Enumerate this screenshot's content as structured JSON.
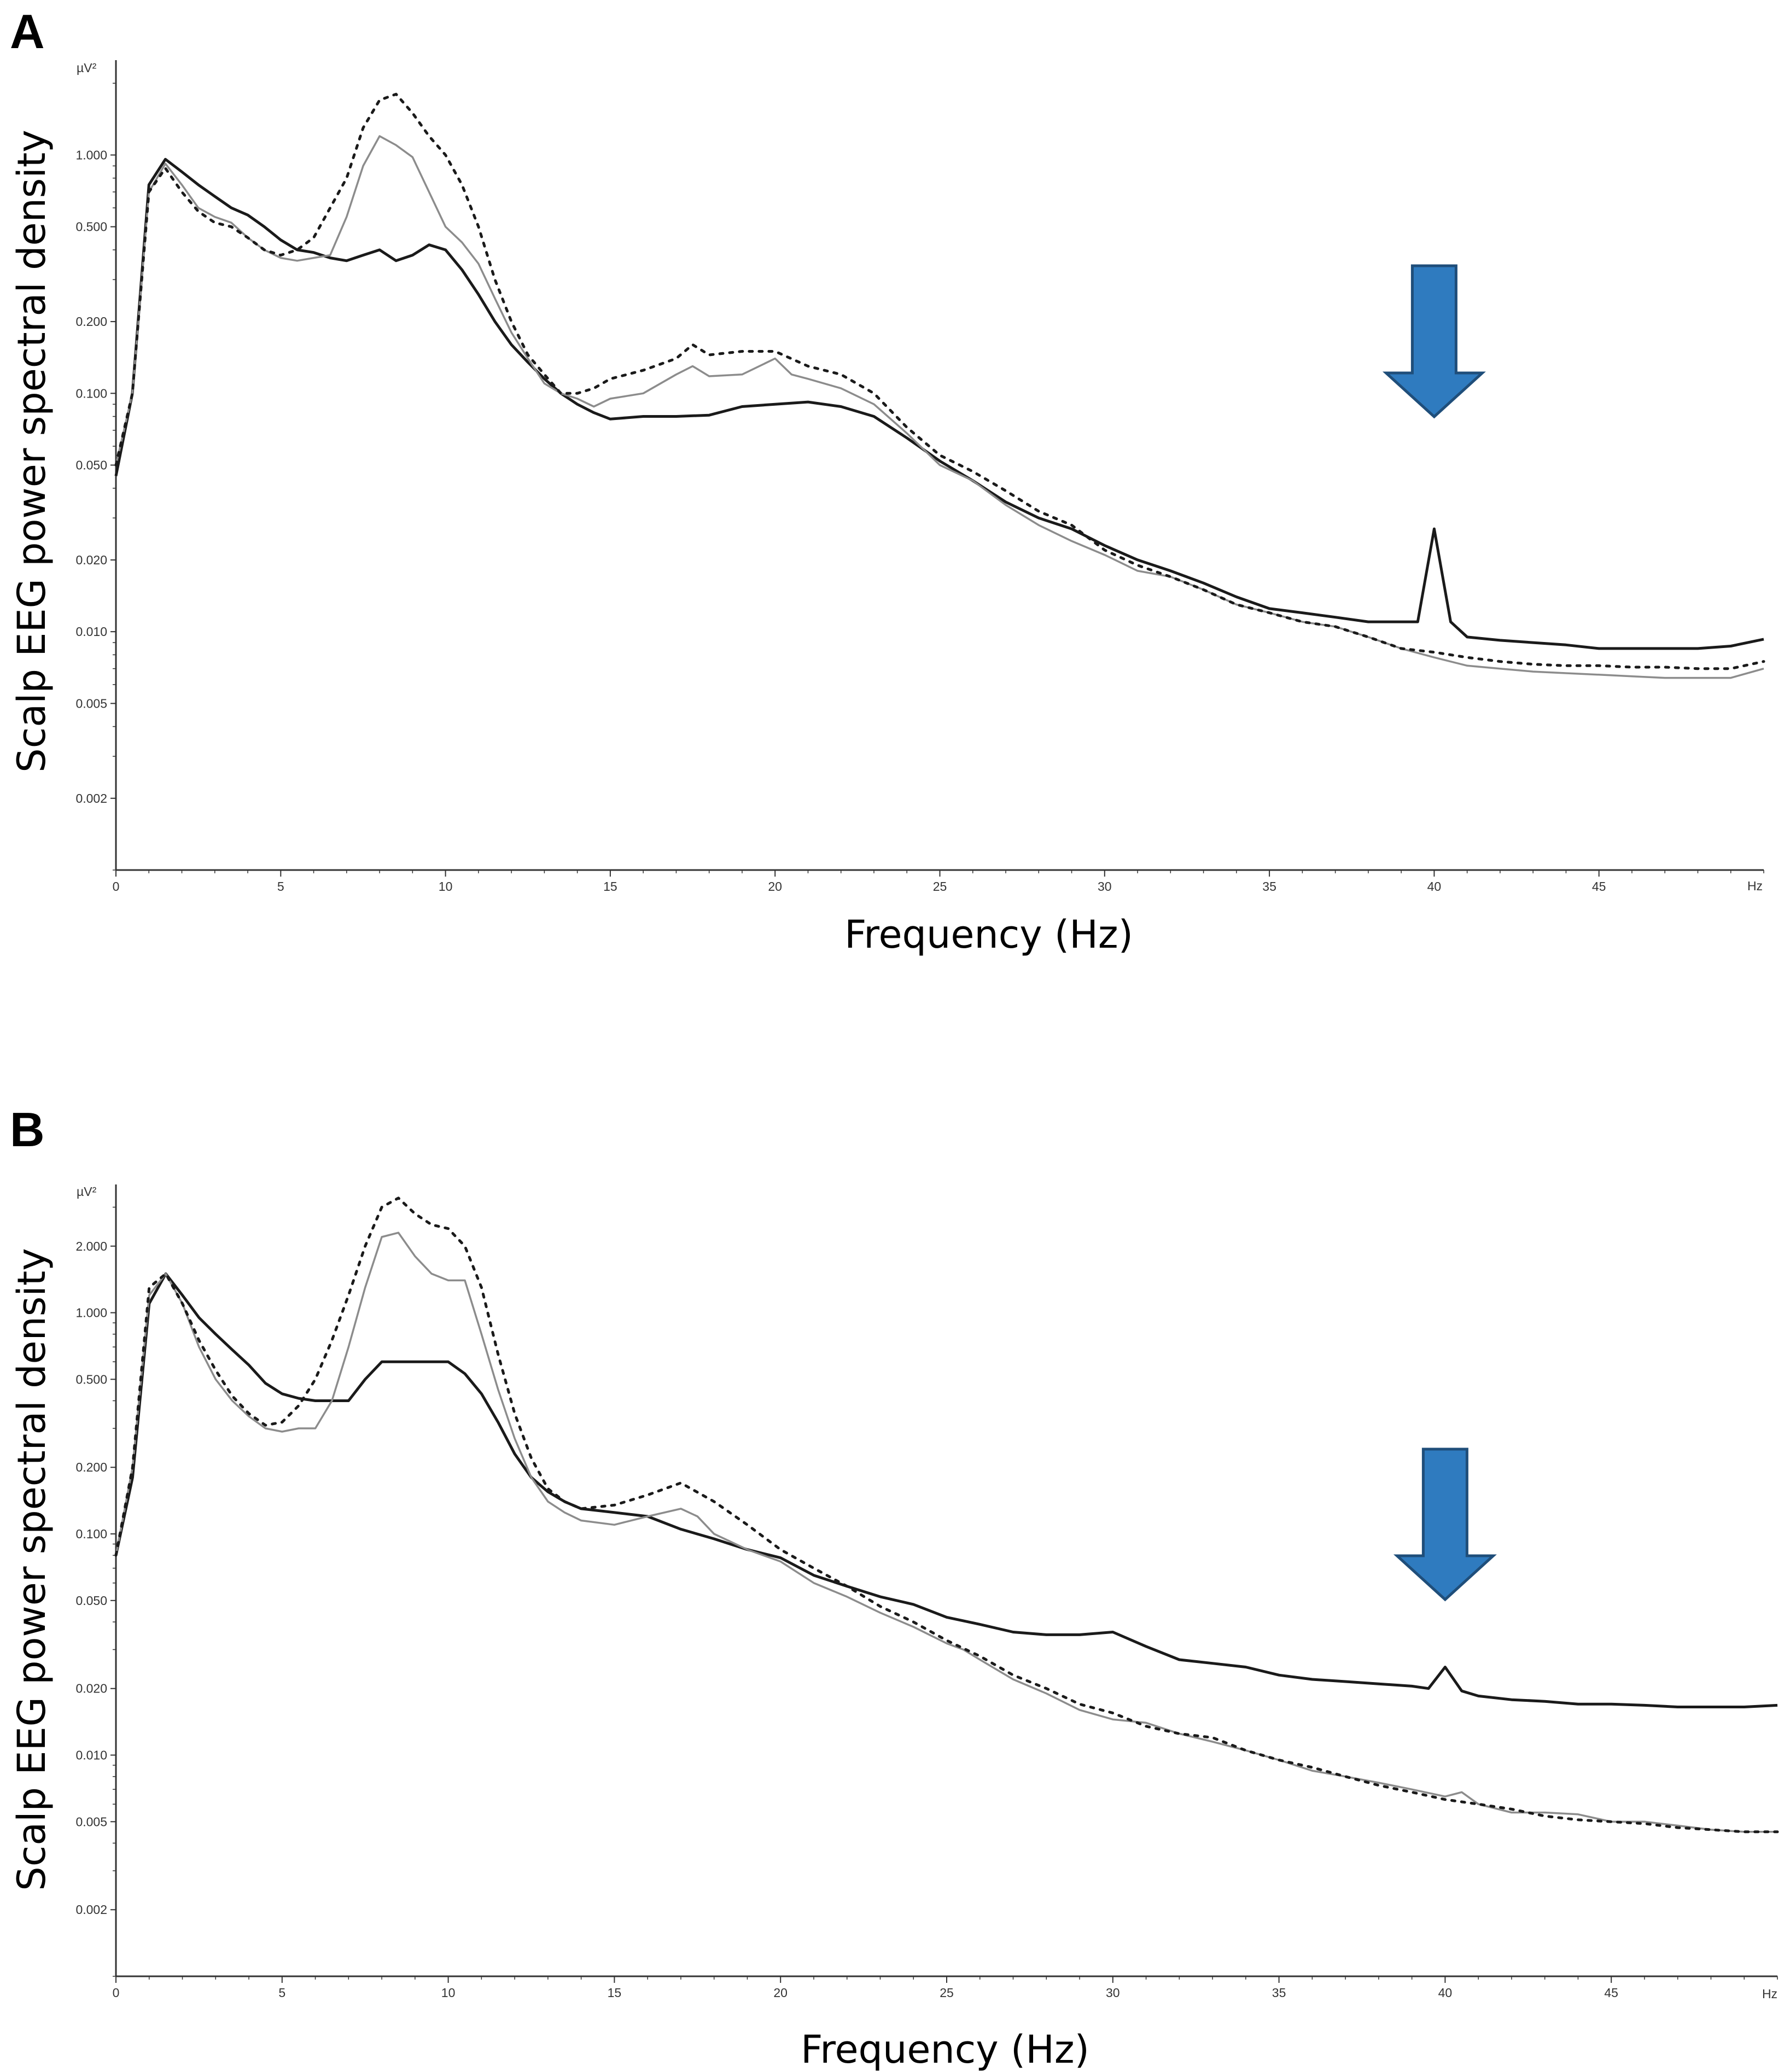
{
  "colors": {
    "background": "#ffffff",
    "axis": "#333333",
    "series_dark": "#1a1a1a",
    "series_grey": "#8c8c8c",
    "series_dotted": "#1a1a1a",
    "arrow_fill": "#2f7bbf",
    "arrow_stroke": "#1f4e7a"
  },
  "chart_data": [
    {
      "panel": "A",
      "type": "line",
      "y_scale": "log",
      "xlabel": "Frequency (Hz)",
      "ylabel": "Scalp EEG power spectral density",
      "y_unit": "µV²",
      "x_unit": "Hz",
      "xlim": [
        0,
        50
      ],
      "ylim": [
        0.001,
        2.5
      ],
      "x_ticks": [
        0,
        5,
        10,
        15,
        20,
        25,
        30,
        35,
        40,
        45
      ],
      "x_tick_labels": [
        "0",
        "5",
        "10",
        "15",
        "20",
        "25",
        "30",
        "35",
        "40",
        "45"
      ],
      "y_ticks": [
        1.0,
        0.5,
        0.2,
        0.1,
        0.05,
        0.02,
        0.01,
        0.005,
        0.002
      ],
      "y_tick_labels": [
        "1.000",
        "0.500",
        "0.200",
        "0.100",
        "0.050",
        "0.020",
        "0.010",
        "0.005",
        "0.002"
      ],
      "annotation": {
        "type": "down-arrow",
        "x": 40,
        "label": ""
      },
      "series": [
        {
          "name": "dark",
          "style": "solid",
          "x": [
            0,
            0.5,
            1,
            1.5,
            2,
            2.5,
            3,
            3.5,
            4,
            4.5,
            5,
            5.5,
            6,
            6.5,
            7,
            7.5,
            8,
            8.5,
            9,
            9.5,
            10,
            10.5,
            11,
            11.5,
            12,
            12.5,
            13,
            13.5,
            14,
            14.5,
            15,
            16,
            17,
            18,
            19,
            20,
            21,
            22,
            23,
            24,
            25,
            26,
            27,
            28,
            29,
            30,
            31,
            32,
            33,
            34,
            35,
            36,
            37,
            38,
            39,
            39.5,
            40,
            40.5,
            41,
            42,
            43,
            44,
            45,
            46,
            47,
            48,
            49,
            50
          ],
          "y": [
            0.045,
            0.1,
            0.75,
            0.96,
            0.85,
            0.75,
            0.67,
            0.6,
            0.56,
            0.5,
            0.44,
            0.4,
            0.39,
            0.37,
            0.36,
            0.38,
            0.4,
            0.36,
            0.38,
            0.42,
            0.4,
            0.33,
            0.26,
            0.2,
            0.16,
            0.135,
            0.115,
            0.1,
            0.09,
            0.083,
            0.078,
            0.08,
            0.08,
            0.081,
            0.088,
            0.09,
            0.092,
            0.088,
            0.08,
            0.065,
            0.052,
            0.043,
            0.035,
            0.03,
            0.027,
            0.023,
            0.02,
            0.018,
            0.016,
            0.014,
            0.0125,
            0.012,
            0.0115,
            0.011,
            0.011,
            0.011,
            0.027,
            0.011,
            0.0095,
            0.0092,
            0.009,
            0.0088,
            0.0085,
            0.0085,
            0.0085,
            0.0085,
            0.0087,
            0.0093
          ]
        },
        {
          "name": "grey",
          "style": "solid",
          "x": [
            0,
            0.5,
            1,
            1.5,
            2,
            2.5,
            3,
            3.5,
            4,
            4.5,
            5,
            5.5,
            6,
            6.5,
            7,
            7.5,
            8,
            8.5,
            9,
            9.5,
            10,
            10.5,
            11,
            11.5,
            12,
            12.5,
            13,
            13.5,
            14,
            14.5,
            15,
            16,
            17,
            17.5,
            18,
            19,
            20,
            20.5,
            21,
            22,
            23,
            24,
            25,
            26,
            27,
            28,
            29,
            30,
            31,
            32,
            33,
            34,
            35,
            36,
            37,
            38,
            39,
            40,
            41,
            42,
            43,
            44,
            45,
            46,
            47,
            48,
            49,
            50
          ],
          "y": [
            0.05,
            0.1,
            0.7,
            0.92,
            0.75,
            0.6,
            0.55,
            0.52,
            0.45,
            0.4,
            0.37,
            0.36,
            0.37,
            0.38,
            0.55,
            0.9,
            1.2,
            1.1,
            0.98,
            0.7,
            0.5,
            0.43,
            0.35,
            0.25,
            0.18,
            0.14,
            0.11,
            0.1,
            0.095,
            0.088,
            0.095,
            0.1,
            0.12,
            0.13,
            0.118,
            0.12,
            0.14,
            0.12,
            0.115,
            0.105,
            0.09,
            0.068,
            0.05,
            0.043,
            0.034,
            0.028,
            0.024,
            0.021,
            0.018,
            0.017,
            0.015,
            0.013,
            0.012,
            0.011,
            0.0105,
            0.0095,
            0.0085,
            0.0078,
            0.0072,
            0.007,
            0.0068,
            0.0067,
            0.0066,
            0.0065,
            0.0064,
            0.0064,
            0.0064,
            0.007
          ]
        },
        {
          "name": "dotted",
          "style": "dotted",
          "x": [
            0,
            0.5,
            1,
            1.5,
            2,
            2.5,
            3,
            3.5,
            4,
            4.5,
            5,
            5.5,
            6,
            6.5,
            7,
            7.5,
            8,
            8.5,
            9,
            9.5,
            10,
            10.5,
            11,
            11.5,
            12,
            12.5,
            13,
            13.5,
            14,
            14.5,
            15,
            16,
            17,
            17.5,
            18,
            19,
            20,
            21,
            22,
            23,
            24,
            25,
            26,
            27,
            28,
            29,
            30,
            31,
            32,
            33,
            34,
            35,
            36,
            37,
            38,
            39,
            40,
            41,
            42,
            43,
            44,
            45,
            46,
            47,
            48,
            49,
            50
          ],
          "y": [
            0.05,
            0.1,
            0.7,
            0.88,
            0.7,
            0.58,
            0.52,
            0.5,
            0.45,
            0.4,
            0.38,
            0.4,
            0.45,
            0.6,
            0.8,
            1.3,
            1.7,
            1.8,
            1.5,
            1.2,
            1.0,
            0.75,
            0.5,
            0.3,
            0.2,
            0.145,
            0.12,
            0.1,
            0.1,
            0.105,
            0.115,
            0.125,
            0.14,
            0.16,
            0.145,
            0.15,
            0.15,
            0.13,
            0.12,
            0.1,
            0.072,
            0.055,
            0.047,
            0.039,
            0.032,
            0.028,
            0.022,
            0.019,
            0.017,
            0.015,
            0.013,
            0.012,
            0.011,
            0.0105,
            0.0095,
            0.0085,
            0.0082,
            0.0078,
            0.0075,
            0.0073,
            0.0072,
            0.0072,
            0.0071,
            0.0071,
            0.007,
            0.007,
            0.0075
          ]
        }
      ]
    },
    {
      "panel": "B",
      "type": "line",
      "y_scale": "log",
      "xlabel": "Frequency (Hz)",
      "ylabel": "Scalp EEG power spectral density",
      "y_unit": "µV²",
      "x_unit": "Hz",
      "xlim": [
        0,
        50
      ],
      "ylim": [
        0.001,
        3.8
      ],
      "x_ticks": [
        0,
        5,
        10,
        15,
        20,
        25,
        30,
        35,
        40,
        45
      ],
      "x_tick_labels": [
        "0",
        "5",
        "10",
        "15",
        "20",
        "25",
        "30",
        "35",
        "40",
        "45"
      ],
      "y_ticks": [
        2.0,
        1.0,
        0.5,
        0.2,
        0.1,
        0.05,
        0.02,
        0.01,
        0.005,
        0.002
      ],
      "y_tick_labels": [
        "2.000",
        "1.000",
        "0.500",
        "0.200",
        "0.100",
        "0.050",
        "0.020",
        "0.010",
        "0.005",
        "0.002"
      ],
      "annotation": {
        "type": "down-arrow",
        "x": 40,
        "label": ""
      },
      "series": [
        {
          "name": "dark",
          "style": "solid",
          "x": [
            0,
            0.5,
            1,
            1.5,
            2,
            2.5,
            3,
            3.5,
            4,
            4.5,
            5,
            5.5,
            6,
            6.5,
            7,
            7.5,
            8,
            8.5,
            9,
            9.5,
            10,
            10.5,
            11,
            11.5,
            12,
            12.5,
            13,
            13.5,
            14,
            15,
            16,
            17,
            18,
            19,
            20,
            21,
            22,
            23,
            24,
            25,
            26,
            27,
            28,
            29,
            30,
            31,
            32,
            33,
            34,
            35,
            36,
            37,
            38,
            39,
            39.5,
            40,
            40.5,
            41,
            42,
            43,
            44,
            45,
            46,
            47,
            48,
            49,
            50
          ],
          "y": [
            0.08,
            0.18,
            1.1,
            1.5,
            1.2,
            0.95,
            0.8,
            0.68,
            0.58,
            0.48,
            0.43,
            0.41,
            0.4,
            0.4,
            0.4,
            0.5,
            0.6,
            0.6,
            0.6,
            0.6,
            0.6,
            0.53,
            0.43,
            0.32,
            0.23,
            0.18,
            0.155,
            0.14,
            0.13,
            0.125,
            0.12,
            0.105,
            0.095,
            0.085,
            0.078,
            0.065,
            0.058,
            0.052,
            0.048,
            0.042,
            0.039,
            0.036,
            0.035,
            0.035,
            0.036,
            0.031,
            0.027,
            0.026,
            0.025,
            0.023,
            0.022,
            0.0215,
            0.021,
            0.0205,
            0.02,
            0.025,
            0.0195,
            0.0185,
            0.0178,
            0.0175,
            0.017,
            0.017,
            0.0168,
            0.0165,
            0.0165,
            0.0165,
            0.0168
          ]
        },
        {
          "name": "grey",
          "style": "solid",
          "x": [
            0,
            0.5,
            1,
            1.5,
            2,
            2.5,
            3,
            3.5,
            4,
            4.5,
            5,
            5.5,
            6,
            6.5,
            7,
            7.5,
            8,
            8.5,
            9,
            9.5,
            10,
            10.5,
            11,
            11.5,
            12,
            12.5,
            13,
            13.5,
            14,
            15,
            16,
            17,
            17.5,
            18,
            19,
            20,
            21,
            22,
            23,
            24,
            25,
            25.5,
            26,
            27,
            28,
            29,
            30,
            31,
            32,
            33,
            34,
            35,
            36,
            37,
            38,
            39,
            40,
            40.5,
            41,
            42,
            43,
            44,
            45,
            46,
            47,
            48,
            49,
            50
          ],
          "y": [
            0.08,
            0.2,
            1.2,
            1.5,
            1.1,
            0.7,
            0.5,
            0.4,
            0.34,
            0.3,
            0.29,
            0.3,
            0.3,
            0.4,
            0.7,
            1.3,
            2.2,
            2.3,
            1.8,
            1.5,
            1.4,
            1.4,
            0.8,
            0.45,
            0.27,
            0.18,
            0.14,
            0.125,
            0.115,
            0.11,
            0.12,
            0.13,
            0.12,
            0.1,
            0.085,
            0.075,
            0.06,
            0.052,
            0.044,
            0.038,
            0.032,
            0.03,
            0.027,
            0.022,
            0.019,
            0.016,
            0.0145,
            0.014,
            0.0125,
            0.0115,
            0.0105,
            0.0095,
            0.0085,
            0.008,
            0.0075,
            0.007,
            0.0065,
            0.0068,
            0.006,
            0.0055,
            0.0055,
            0.0054,
            0.005,
            0.005,
            0.0048,
            0.0046,
            0.0045,
            0.0045
          ]
        },
        {
          "name": "dotted",
          "style": "dotted",
          "x": [
            0,
            0.5,
            1,
            1.5,
            2,
            2.5,
            3,
            3.5,
            4,
            4.5,
            5,
            5.5,
            6,
            6.5,
            7,
            7.5,
            8,
            8.5,
            9,
            9.5,
            10,
            10.5,
            11,
            11.5,
            12,
            12.5,
            13,
            13.5,
            14,
            15,
            16,
            17,
            18,
            19,
            20,
            21,
            22,
            23,
            24,
            25,
            26,
            27,
            28,
            29,
            30,
            31,
            32,
            33,
            34,
            35,
            36,
            37,
            38,
            39,
            40,
            41,
            42,
            43,
            44,
            45,
            46,
            47,
            48,
            49,
            50
          ],
          "y": [
            0.08,
            0.2,
            1.3,
            1.5,
            1.1,
            0.75,
            0.55,
            0.42,
            0.35,
            0.31,
            0.32,
            0.38,
            0.5,
            0.75,
            1.2,
            2.0,
            3.0,
            3.3,
            2.8,
            2.5,
            2.4,
            2.0,
            1.3,
            0.65,
            0.35,
            0.22,
            0.16,
            0.14,
            0.13,
            0.135,
            0.15,
            0.17,
            0.14,
            0.11,
            0.085,
            0.07,
            0.058,
            0.047,
            0.04,
            0.033,
            0.028,
            0.023,
            0.02,
            0.017,
            0.0155,
            0.0135,
            0.0125,
            0.012,
            0.0105,
            0.0095,
            0.0088,
            0.008,
            0.0073,
            0.0068,
            0.0063,
            0.006,
            0.0057,
            0.0053,
            0.0051,
            0.005,
            0.0049,
            0.0047,
            0.0046,
            0.0045,
            0.0045
          ]
        }
      ]
    }
  ]
}
